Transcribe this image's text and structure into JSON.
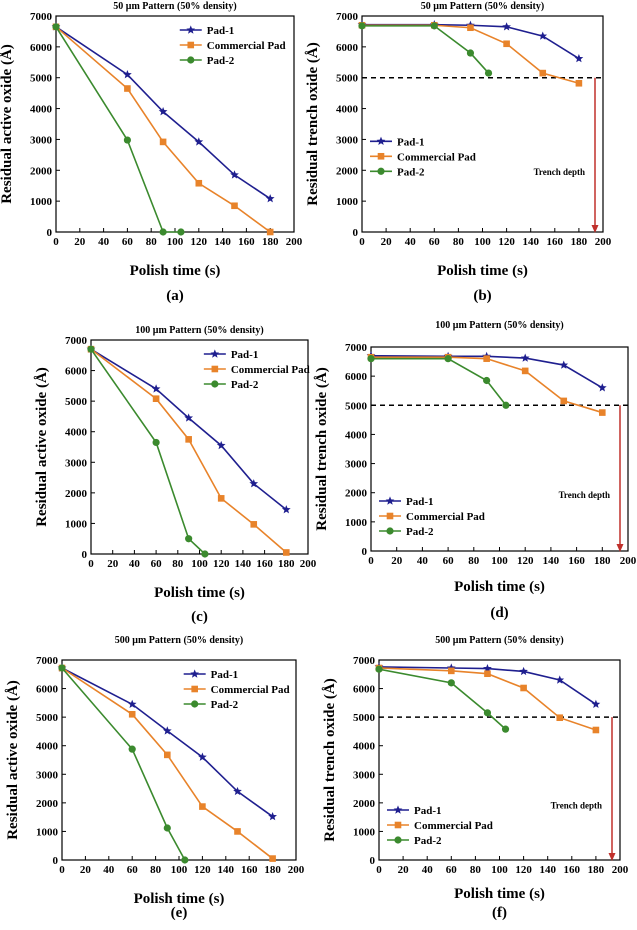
{
  "colors": {
    "pad1": "#1f1f8f",
    "commercial": "#e8832a",
    "pad2": "#3b8a2e",
    "arrow": "#c0302b",
    "axis": "#000000"
  },
  "chart_data": [
    {
      "panel_label": "(a)",
      "type": "line",
      "title": "50 μm Pattern (50% density)",
      "xlabel": "Polish time (s)",
      "ylabel": "Residual active oxide (Å)",
      "xlim": [
        0,
        200
      ],
      "ylim": [
        0,
        7000
      ],
      "xticks": [
        "0",
        "20",
        "40",
        "60",
        "80",
        "100",
        "120",
        "140",
        "160",
        "180",
        "200"
      ],
      "yticks": [
        "0",
        "1000",
        "2000",
        "3000",
        "4000",
        "5000",
        "6000",
        "7000"
      ],
      "legend_position": "top-right",
      "series": [
        {
          "name": "Pad-1",
          "marker": "star",
          "x": [
            0,
            60,
            90,
            120,
            150,
            180
          ],
          "y": [
            6650,
            5100,
            3900,
            2920,
            1850,
            1080
          ]
        },
        {
          "name": "Commercial Pad",
          "marker": "square",
          "x": [
            0,
            60,
            90,
            120,
            150,
            180
          ],
          "y": [
            6650,
            4650,
            2920,
            1580,
            850,
            0
          ]
        },
        {
          "name": "Pad-2",
          "marker": "circle",
          "x": [
            0,
            60,
            90,
            105
          ],
          "y": [
            6650,
            2980,
            0,
            0
          ]
        }
      ]
    },
    {
      "panel_label": "(b)",
      "type": "line",
      "title": "50 μm Pattern (50% density)",
      "xlabel": "Polish time (s)",
      "ylabel": "Residual trench oxide (Å)",
      "xlim": [
        0,
        200
      ],
      "ylim": [
        0,
        7000
      ],
      "xticks": [
        "0",
        "20",
        "40",
        "60",
        "80",
        "100",
        "120",
        "140",
        "160",
        "180",
        "200"
      ],
      "yticks": [
        "0",
        "1000",
        "2000",
        "3000",
        "4000",
        "5000",
        "6000",
        "7000"
      ],
      "legend_position": "middle-left",
      "annotation": "Trench depth",
      "trench_depth": 5000,
      "series": [
        {
          "name": "Pad-1",
          "marker": "star",
          "x": [
            0,
            60,
            90,
            120,
            150,
            180
          ],
          "y": [
            6720,
            6720,
            6700,
            6650,
            6350,
            5620
          ]
        },
        {
          "name": "Commercial Pad",
          "marker": "square",
          "x": [
            0,
            60,
            90,
            120,
            150,
            180
          ],
          "y": [
            6700,
            6700,
            6620,
            6100,
            5150,
            4820
          ]
        },
        {
          "name": "Pad-2",
          "marker": "circle",
          "x": [
            0,
            60,
            90,
            105
          ],
          "y": [
            6680,
            6680,
            5800,
            5150
          ]
        }
      ]
    },
    {
      "panel_label": "(c)",
      "type": "line",
      "title": "100 μm Pattern (50% density)",
      "xlabel": "Polish time (s)",
      "ylabel": "Residual active oxide (Å)",
      "xlim": [
        0,
        200
      ],
      "ylim": [
        0,
        7000
      ],
      "xticks": [
        "0",
        "20",
        "40",
        "60",
        "80",
        "100",
        "120",
        "140",
        "160",
        "180",
        "200"
      ],
      "yticks": [
        "0",
        "1000",
        "2000",
        "3000",
        "4000",
        "5000",
        "6000",
        "7000"
      ],
      "legend_position": "top-right",
      "series": [
        {
          "name": "Pad-1",
          "marker": "star",
          "x": [
            0,
            60,
            90,
            120,
            150,
            180
          ],
          "y": [
            6700,
            5400,
            4450,
            3550,
            2300,
            1450
          ]
        },
        {
          "name": "Commercial Pad",
          "marker": "square",
          "x": [
            0,
            60,
            90,
            120,
            150,
            180
          ],
          "y": [
            6700,
            5080,
            3750,
            1820,
            970,
            50
          ]
        },
        {
          "name": "Pad-2",
          "marker": "circle",
          "x": [
            0,
            60,
            90,
            105
          ],
          "y": [
            6700,
            3650,
            500,
            0
          ]
        }
      ]
    },
    {
      "panel_label": "(d)",
      "type": "line",
      "title": "100 μm Pattern (50% density)",
      "xlabel": "Polish time (s)",
      "ylabel": "Residual trench oxide (Å)",
      "xlim": [
        0,
        200
      ],
      "ylim": [
        0,
        7000
      ],
      "xticks": [
        "0",
        "20",
        "40",
        "60",
        "80",
        "100",
        "120",
        "140",
        "160",
        "180",
        "200"
      ],
      "yticks": [
        "0",
        "1000",
        "2000",
        "3000",
        "4000",
        "5000",
        "6000",
        "7000"
      ],
      "legend_position": "bottom-left",
      "annotation": "Trench depth",
      "trench_depth": 5000,
      "series": [
        {
          "name": "Pad-1",
          "marker": "star",
          "x": [
            0,
            60,
            90,
            120,
            150,
            180
          ],
          "y": [
            6700,
            6680,
            6680,
            6620,
            6380,
            5600
          ]
        },
        {
          "name": "Commercial Pad",
          "marker": "square",
          "x": [
            0,
            60,
            90,
            120,
            150,
            180
          ],
          "y": [
            6650,
            6650,
            6600,
            6180,
            5150,
            4750
          ]
        },
        {
          "name": "Pad-2",
          "marker": "circle",
          "x": [
            0,
            60,
            90,
            105
          ],
          "y": [
            6600,
            6600,
            5850,
            5000
          ]
        }
      ]
    },
    {
      "panel_label": "(e)",
      "type": "line",
      "title": "500 μm Pattern (50% density)",
      "xlabel": "Polish time (s)",
      "ylabel": "Residual active oxide (Å)",
      "xlim": [
        0,
        200
      ],
      "ylim": [
        0,
        7000
      ],
      "xticks": [
        "0",
        "20",
        "40",
        "60",
        "80",
        "100",
        "120",
        "140",
        "160",
        "180",
        "200"
      ],
      "yticks": [
        "0",
        "1000",
        "2000",
        "3000",
        "4000",
        "5000",
        "6000",
        "7000"
      ],
      "legend_position": "top-right",
      "series": [
        {
          "name": "Pad-1",
          "marker": "star",
          "x": [
            0,
            60,
            90,
            120,
            150,
            180
          ],
          "y": [
            6720,
            5450,
            4520,
            3600,
            2400,
            1520
          ]
        },
        {
          "name": "Commercial Pad",
          "marker": "square",
          "x": [
            0,
            60,
            90,
            120,
            150,
            180
          ],
          "y": [
            6720,
            5100,
            3680,
            1870,
            1000,
            50
          ]
        },
        {
          "name": "Pad-2",
          "marker": "circle",
          "x": [
            0,
            60,
            90,
            105
          ],
          "y": [
            6720,
            3880,
            1120,
            0
          ]
        }
      ]
    },
    {
      "panel_label": "(f)",
      "type": "line",
      "title": "500 μm Pattern (50% density)",
      "xlabel": "Polish time (s)",
      "ylabel": "Residual trench oxide (Å)",
      "xlim": [
        0,
        200
      ],
      "ylim": [
        0,
        7000
      ],
      "xticks": [
        "0",
        "20",
        "40",
        "60",
        "80",
        "100",
        "120",
        "140",
        "160",
        "180",
        "200"
      ],
      "yticks": [
        "0",
        "1000",
        "2000",
        "3000",
        "4000",
        "5000",
        "6000",
        "7000"
      ],
      "legend_position": "bottom-left",
      "annotation": "Trench depth",
      "trench_depth": 5000,
      "series": [
        {
          "name": "Pad-1",
          "marker": "star",
          "x": [
            0,
            60,
            90,
            120,
            150,
            180
          ],
          "y": [
            6760,
            6720,
            6700,
            6600,
            6300,
            5450
          ]
        },
        {
          "name": "Commercial Pad",
          "marker": "square",
          "x": [
            0,
            60,
            90,
            120,
            150,
            180
          ],
          "y": [
            6720,
            6620,
            6520,
            6020,
            4980,
            4550
          ]
        },
        {
          "name": "Pad-2",
          "marker": "circle",
          "x": [
            0,
            60,
            90,
            105
          ],
          "y": [
            6680,
            6200,
            5150,
            4580
          ]
        }
      ]
    }
  ]
}
